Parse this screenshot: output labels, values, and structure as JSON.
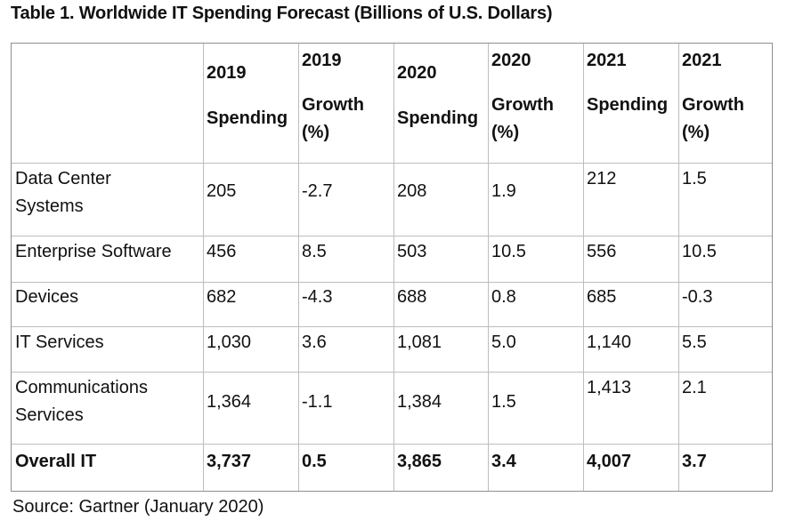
{
  "title": "Table 1. Worldwide IT Spending Forecast (Billions of U.S. Dollars)",
  "headers": {
    "c2019_year": "2019",
    "c2019_spending": "Spending",
    "c2019g_year": "2019",
    "c2019g_growth": "Growth",
    "c2019g_pct": "(%)",
    "c2020_year": "2020",
    "c2020_spending": "Spending",
    "c2020g_year": "2020",
    "c2020g_growth": "Growth",
    "c2020g_pct": "(%)",
    "c2021_year": "2021",
    "c2021_spending": "Spending",
    "c2021g_year": "2021",
    "c2021g_growth": "Growth",
    "c2021g_pct": "(%)"
  },
  "rows": [
    {
      "segment_line1": "Data Center",
      "segment_line2": "Systems",
      "s2019": "205",
      "g2019": "-2.7",
      "s2020": "208",
      "g2020": "1.9",
      "s2021": "212",
      "g2021": "1.5"
    },
    {
      "segment_line1": "Enterprise Software",
      "s2019": "456",
      "g2019": "8.5",
      "s2020": "503",
      "g2020": "10.5",
      "s2021": "556",
      "g2021": "10.5"
    },
    {
      "segment_line1": "Devices",
      "s2019": "682",
      "g2019": "-4.3",
      "s2020": "688",
      "g2020": "0.8",
      "s2021": "685",
      "g2021": "-0.3"
    },
    {
      "segment_line1": "IT Services",
      "s2019": "1,030",
      "g2019": "3.6",
      "s2020": "1,081",
      "g2020": "5.0",
      "s2021": "1,140",
      "g2021": "5.5"
    },
    {
      "segment_line1": "Communications",
      "segment_line2": "Services",
      "s2019": "1,364",
      "g2019": "-1.1",
      "s2020": "1,384",
      "g2020": "1.5",
      "s2021": "1,413",
      "g2021": "2.1"
    },
    {
      "segment_line1": "Overall IT",
      "s2019": "3,737",
      "g2019": "0.5",
      "s2020": "3,865",
      "g2020": "3.4",
      "s2021": "4,007",
      "g2021": "3.7"
    }
  ],
  "source": "Source: Gartner (January 2020)"
}
